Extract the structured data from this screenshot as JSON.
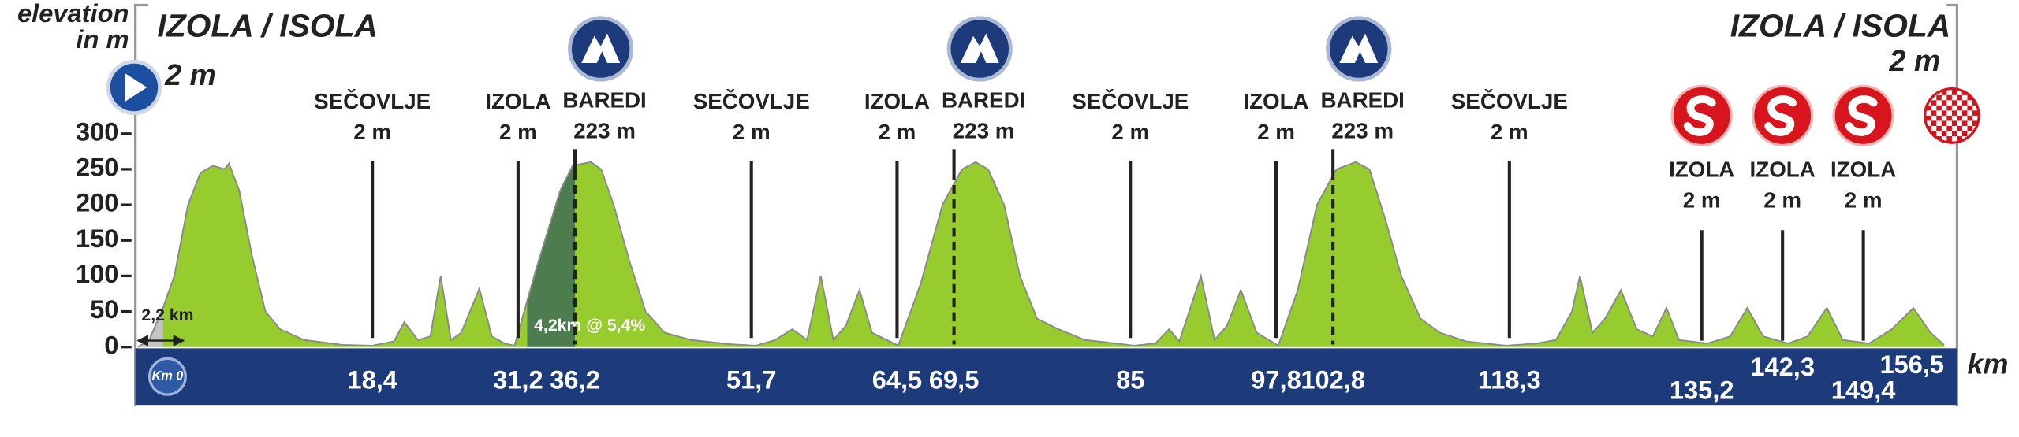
{
  "chart_data": {
    "type": "area",
    "y_label": [
      "elevation",
      "in m"
    ],
    "x_label": "km",
    "ylim": [
      0,
      300
    ],
    "yticks": [
      0,
      50,
      100,
      150,
      200,
      250,
      300
    ],
    "xlim": [
      -2.2,
      156.5
    ],
    "color": "#97cc2e",
    "x": [
      -2.2,
      -1.2,
      0,
      1.0,
      2.2,
      3.3,
      4.4,
      5.4,
      5.8,
      6.7,
      7.8,
      9.0,
      10.3,
      12.4,
      15.8,
      18.4,
      20.3,
      21.2,
      22.4,
      23.5,
      24.4,
      25.3,
      26.2,
      27.8,
      28.9,
      30.0,
      30.9,
      32.8,
      34.9,
      36.0,
      37.6,
      38.5,
      39.6,
      41.0,
      42.4,
      44.1,
      46.4,
      49.8,
      52.1,
      53.8,
      55.3,
      56.6,
      57.8,
      58.9,
      60.0,
      61.2,
      62.3,
      64.6,
      66.6,
      68.5,
      70.2,
      71.4,
      72.5,
      73.9,
      75.3,
      76.8,
      78.7,
      81.0,
      83.8,
      85.3,
      87.2,
      88.4,
      89.3,
      91.2,
      92.4,
      93.5,
      94.7,
      96.1,
      98.0,
      99.7,
      101.4,
      103.1,
      104.8,
      106.0,
      107.4,
      108.8,
      110.5,
      112.2,
      114.5,
      118.0,
      120.7,
      122.4,
      123.8,
      124.5,
      125.6,
      126.7,
      128.1,
      129.5,
      130.9,
      132.1,
      133.2,
      135.7,
      137.7,
      139.2,
      140.6,
      142.8,
      144.5,
      146.2,
      147.6,
      149.9,
      151.9,
      153.8,
      155.3,
      156.5
    ],
    "values": [
      0,
      10,
      55,
      100,
      200,
      245,
      255,
      250,
      258,
      220,
      130,
      50,
      25,
      10,
      3,
      2,
      8,
      35,
      10,
      15,
      100,
      10,
      20,
      82,
      15,
      5,
      2,
      110,
      220,
      255,
      260,
      250,
      200,
      120,
      50,
      20,
      10,
      4,
      2,
      10,
      25,
      10,
      100,
      10,
      30,
      80,
      20,
      2,
      90,
      200,
      250,
      260,
      250,
      200,
      100,
      40,
      25,
      10,
      5,
      2,
      5,
      25,
      8,
      100,
      10,
      30,
      80,
      20,
      2,
      80,
      200,
      250,
      260,
      250,
      180,
      100,
      40,
      20,
      8,
      2,
      5,
      10,
      50,
      100,
      20,
      40,
      80,
      25,
      15,
      55,
      10,
      5,
      15,
      55,
      15,
      5,
      15,
      55,
      10,
      5,
      25,
      55,
      20,
      3
    ],
    "start": {
      "name": "IZOLA / ISOLA",
      "elevation": "2 m",
      "km_marker": "Km 0"
    },
    "finish": {
      "name": "IZOLA / ISOLA",
      "elevation": "2 m",
      "km": {
        "value": 156.5,
        "label": "156,5"
      }
    },
    "neutral": {
      "value": 2.2,
      "label": "2,2 km"
    },
    "climb": {
      "from": 32.0,
      "to": 36.2,
      "label": "4,2km @ 5,4%"
    },
    "waypoints": [
      {
        "name": "SEČOVLJE",
        "elevation": "2 m",
        "km": {
          "value": 18.4,
          "label": "18,4"
        },
        "kind": "passage"
      },
      {
        "name": "IZOLA",
        "elevation": "2 m",
        "km": {
          "value": 31.2,
          "label": "31,2"
        },
        "kind": "passage"
      },
      {
        "name": "BAREDI",
        "elevation": "223 m",
        "km": {
          "value": 36.2,
          "label": "36,2"
        },
        "kind": "kom"
      },
      {
        "name": "SEČOVLJE",
        "elevation": "2 m",
        "km": {
          "value": 51.7,
          "label": "51,7"
        },
        "kind": "passage"
      },
      {
        "name": "IZOLA",
        "elevation": "2 m",
        "km": {
          "value": 64.5,
          "label": "64,5"
        },
        "kind": "passage"
      },
      {
        "name": "BAREDI",
        "elevation": "223 m",
        "km": {
          "value": 69.5,
          "label": "69,5"
        },
        "kind": "kom"
      },
      {
        "name": "SEČOVLJE",
        "elevation": "2 m",
        "km": 85,
        "kind": "passage"
      },
      {
        "name": "IZOLA",
        "elevation": "2 m",
        "km": {
          "value": 97.8,
          "label": "97,8"
        },
        "kind": "passage"
      },
      {
        "name": "BAREDI",
        "elevation": "223 m",
        "km": {
          "value": 102.8,
          "label": "102,8"
        },
        "kind": "kom"
      },
      {
        "name": "SEČOVLJE",
        "elevation": "2 m",
        "km": {
          "value": 118.3,
          "label": "118,3"
        },
        "kind": "passage"
      },
      {
        "name": "IZOLA",
        "elevation": "2 m",
        "km": {
          "value": 135.2,
          "label": "135,2"
        },
        "kind": "sprint"
      },
      {
        "name": "IZOLA",
        "elevation": "2 m",
        "km": {
          "value": 142.3,
          "label": "142,3"
        },
        "kind": "sprint"
      },
      {
        "name": "IZOLA",
        "elevation": "2 m",
        "km": {
          "value": 149.4,
          "label": "149,4"
        },
        "kind": "sprint"
      }
    ]
  }
}
